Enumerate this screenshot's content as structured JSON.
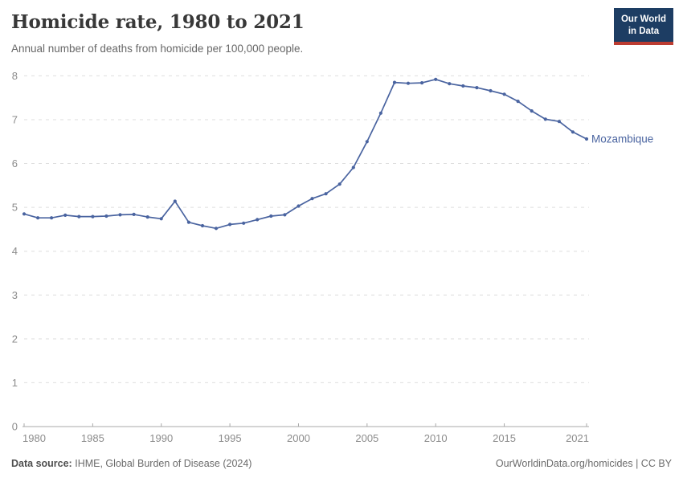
{
  "header": {
    "title": "Homicide rate, 1980 to 2021",
    "subtitle": "Annual number of deaths from homicide per 100,000 people.",
    "logo": {
      "line1": "Our World",
      "line2": "in Data",
      "bg_color": "#1d3d63",
      "accent_color": "#bc3c31"
    }
  },
  "chart_data": {
    "type": "line",
    "title": "Homicide rate, 1980 to 2021",
    "xlabel": "",
    "ylabel": "",
    "x": [
      1980,
      1981,
      1982,
      1983,
      1984,
      1985,
      1986,
      1987,
      1988,
      1989,
      1990,
      1991,
      1992,
      1993,
      1994,
      1995,
      1996,
      1997,
      1998,
      1999,
      2000,
      2001,
      2002,
      2003,
      2004,
      2005,
      2006,
      2007,
      2008,
      2009,
      2010,
      2011,
      2012,
      2013,
      2014,
      2015,
      2016,
      2017,
      2018,
      2019,
      2020,
      2021
    ],
    "series": [
      {
        "name": "Mozambique",
        "color": "#4a64a0",
        "values": [
          4.85,
          4.76,
          4.76,
          4.82,
          4.79,
          4.79,
          4.8,
          4.83,
          4.84,
          4.78,
          4.74,
          5.14,
          4.66,
          4.58,
          4.52,
          4.61,
          4.64,
          4.72,
          4.8,
          4.83,
          5.03,
          5.2,
          5.31,
          5.53,
          5.91,
          6.5,
          7.15,
          7.85,
          7.83,
          7.84,
          7.92,
          7.82,
          7.77,
          7.73,
          7.66,
          7.58,
          7.42,
          7.2,
          7.01,
          6.96,
          6.72,
          6.56
        ]
      }
    ],
    "ylim": [
      0,
      8
    ],
    "y_ticks": [
      0,
      1,
      2,
      3,
      4,
      5,
      6,
      7,
      8
    ],
    "x_ticks": [
      1980,
      1985,
      1990,
      1995,
      2000,
      2005,
      2010,
      2015,
      2021
    ],
    "grid": "horizontal-dashed",
    "legend_position": "end-of-line-label",
    "colors": {
      "grid": "#dedede",
      "axis": "#a8a8a8",
      "tick_label": "#8c8c8c"
    }
  },
  "footer": {
    "source_label": "Data source:",
    "source_text": "IHME, Global Burden of Disease (2024)",
    "link_text": "OurWorldinData.org/homicides | CC BY"
  }
}
